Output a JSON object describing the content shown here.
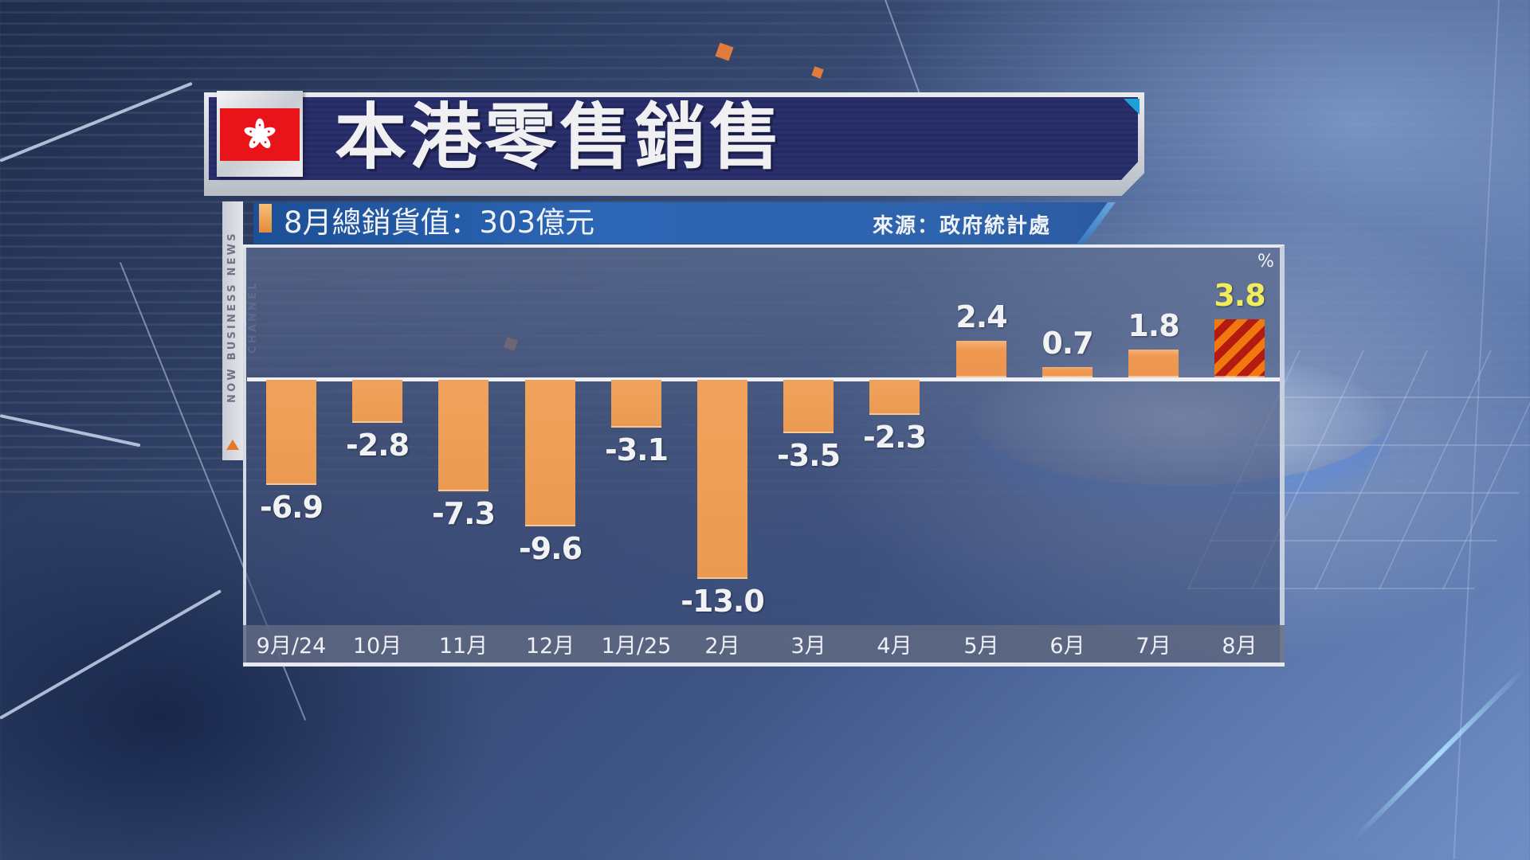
{
  "header": {
    "title": "本港零售銷售",
    "flag_icon": "hong-kong-flag-icon",
    "flag_glyph": "✿"
  },
  "subtitle": {
    "left": "8月總銷貨值：303億元",
    "right": "來源：政府統計處"
  },
  "channel": {
    "label": "NOW BUSINESS NEWS CHANNEL"
  },
  "colors": {
    "bar": "#ec9a51",
    "highlight_stripe_a": "#f0780e",
    "highlight_stripe_b": "#b41a10",
    "highlight_label": "#f1ec5b",
    "title_bar": "#2a2f6e",
    "subtitle_strip": "#2d66b5",
    "flag_red": "#e8141a"
  },
  "chart": {
    "unit_label": "%",
    "bars": [
      {
        "label": "9月/24",
        "value": "-6.9"
      },
      {
        "label": "10月",
        "value": "-2.8"
      },
      {
        "label": "11月",
        "value": "-7.3"
      },
      {
        "label": "12月",
        "value": "-9.6"
      },
      {
        "label": "1月/25",
        "value": "-3.1"
      },
      {
        "label": "2月",
        "value": "-13.0"
      },
      {
        "label": "3月",
        "value": "-3.5"
      },
      {
        "label": "4月",
        "value": "-2.3"
      },
      {
        "label": "5月",
        "value": "2.4"
      },
      {
        "label": "6月",
        "value": "0.7"
      },
      {
        "label": "7月",
        "value": "1.8"
      },
      {
        "label": "8月",
        "value": "3.8"
      }
    ]
  },
  "chart_data": {
    "type": "bar",
    "title": "本港零售銷售",
    "subtitle": "8月總銷貨值：303億元",
    "source": "來源：政府統計處",
    "categories": [
      "9月/24",
      "10月",
      "11月",
      "12月",
      "1月/25",
      "2月",
      "3月",
      "4月",
      "5月",
      "6月",
      "7月",
      "8月"
    ],
    "values": [
      -6.9,
      -2.8,
      -7.3,
      -9.6,
      -3.1,
      -13.0,
      -3.5,
      -2.3,
      2.4,
      0.7,
      1.8,
      3.8
    ],
    "xlabel": "",
    "ylabel": "%",
    "ylim": [
      -13.0,
      3.8
    ],
    "grid": false,
    "legend": "none",
    "data_labels": true,
    "highlighted_category": "8月"
  }
}
